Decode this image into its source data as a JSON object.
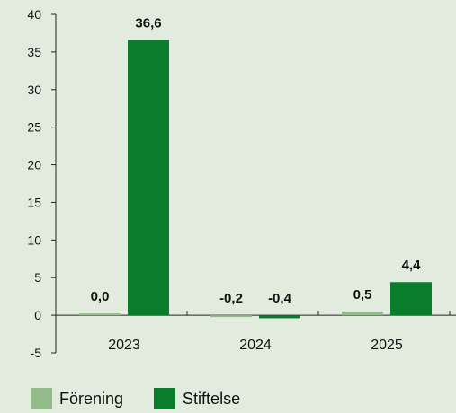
{
  "chart_data": {
    "type": "bar",
    "categories": [
      "2023",
      "2024",
      "2025"
    ],
    "series": [
      {
        "name": "Förening",
        "values": [
          0.0,
          -0.2,
          0.5
        ],
        "labels": [
          "0,0",
          "-0,2",
          "0,5"
        ]
      },
      {
        "name": "Stiftelse",
        "values": [
          36.6,
          -0.4,
          4.4
        ],
        "labels": [
          "36,6",
          "-0,4",
          "4,4"
        ]
      }
    ],
    "ylim": [
      -5,
      40
    ],
    "yticks": [
      40,
      35,
      30,
      25,
      20,
      15,
      10,
      5,
      0,
      -5
    ],
    "grid": false,
    "legend": "bottom-left",
    "colors": {
      "background": "#e2ecde",
      "Förening": "#92bd8b",
      "Stiftelse": "#0a7d2c",
      "axis": "#222222",
      "text": "#111111"
    }
  },
  "legend": {
    "items": [
      {
        "label": "Förening"
      },
      {
        "label": "Stiftelse"
      }
    ]
  }
}
